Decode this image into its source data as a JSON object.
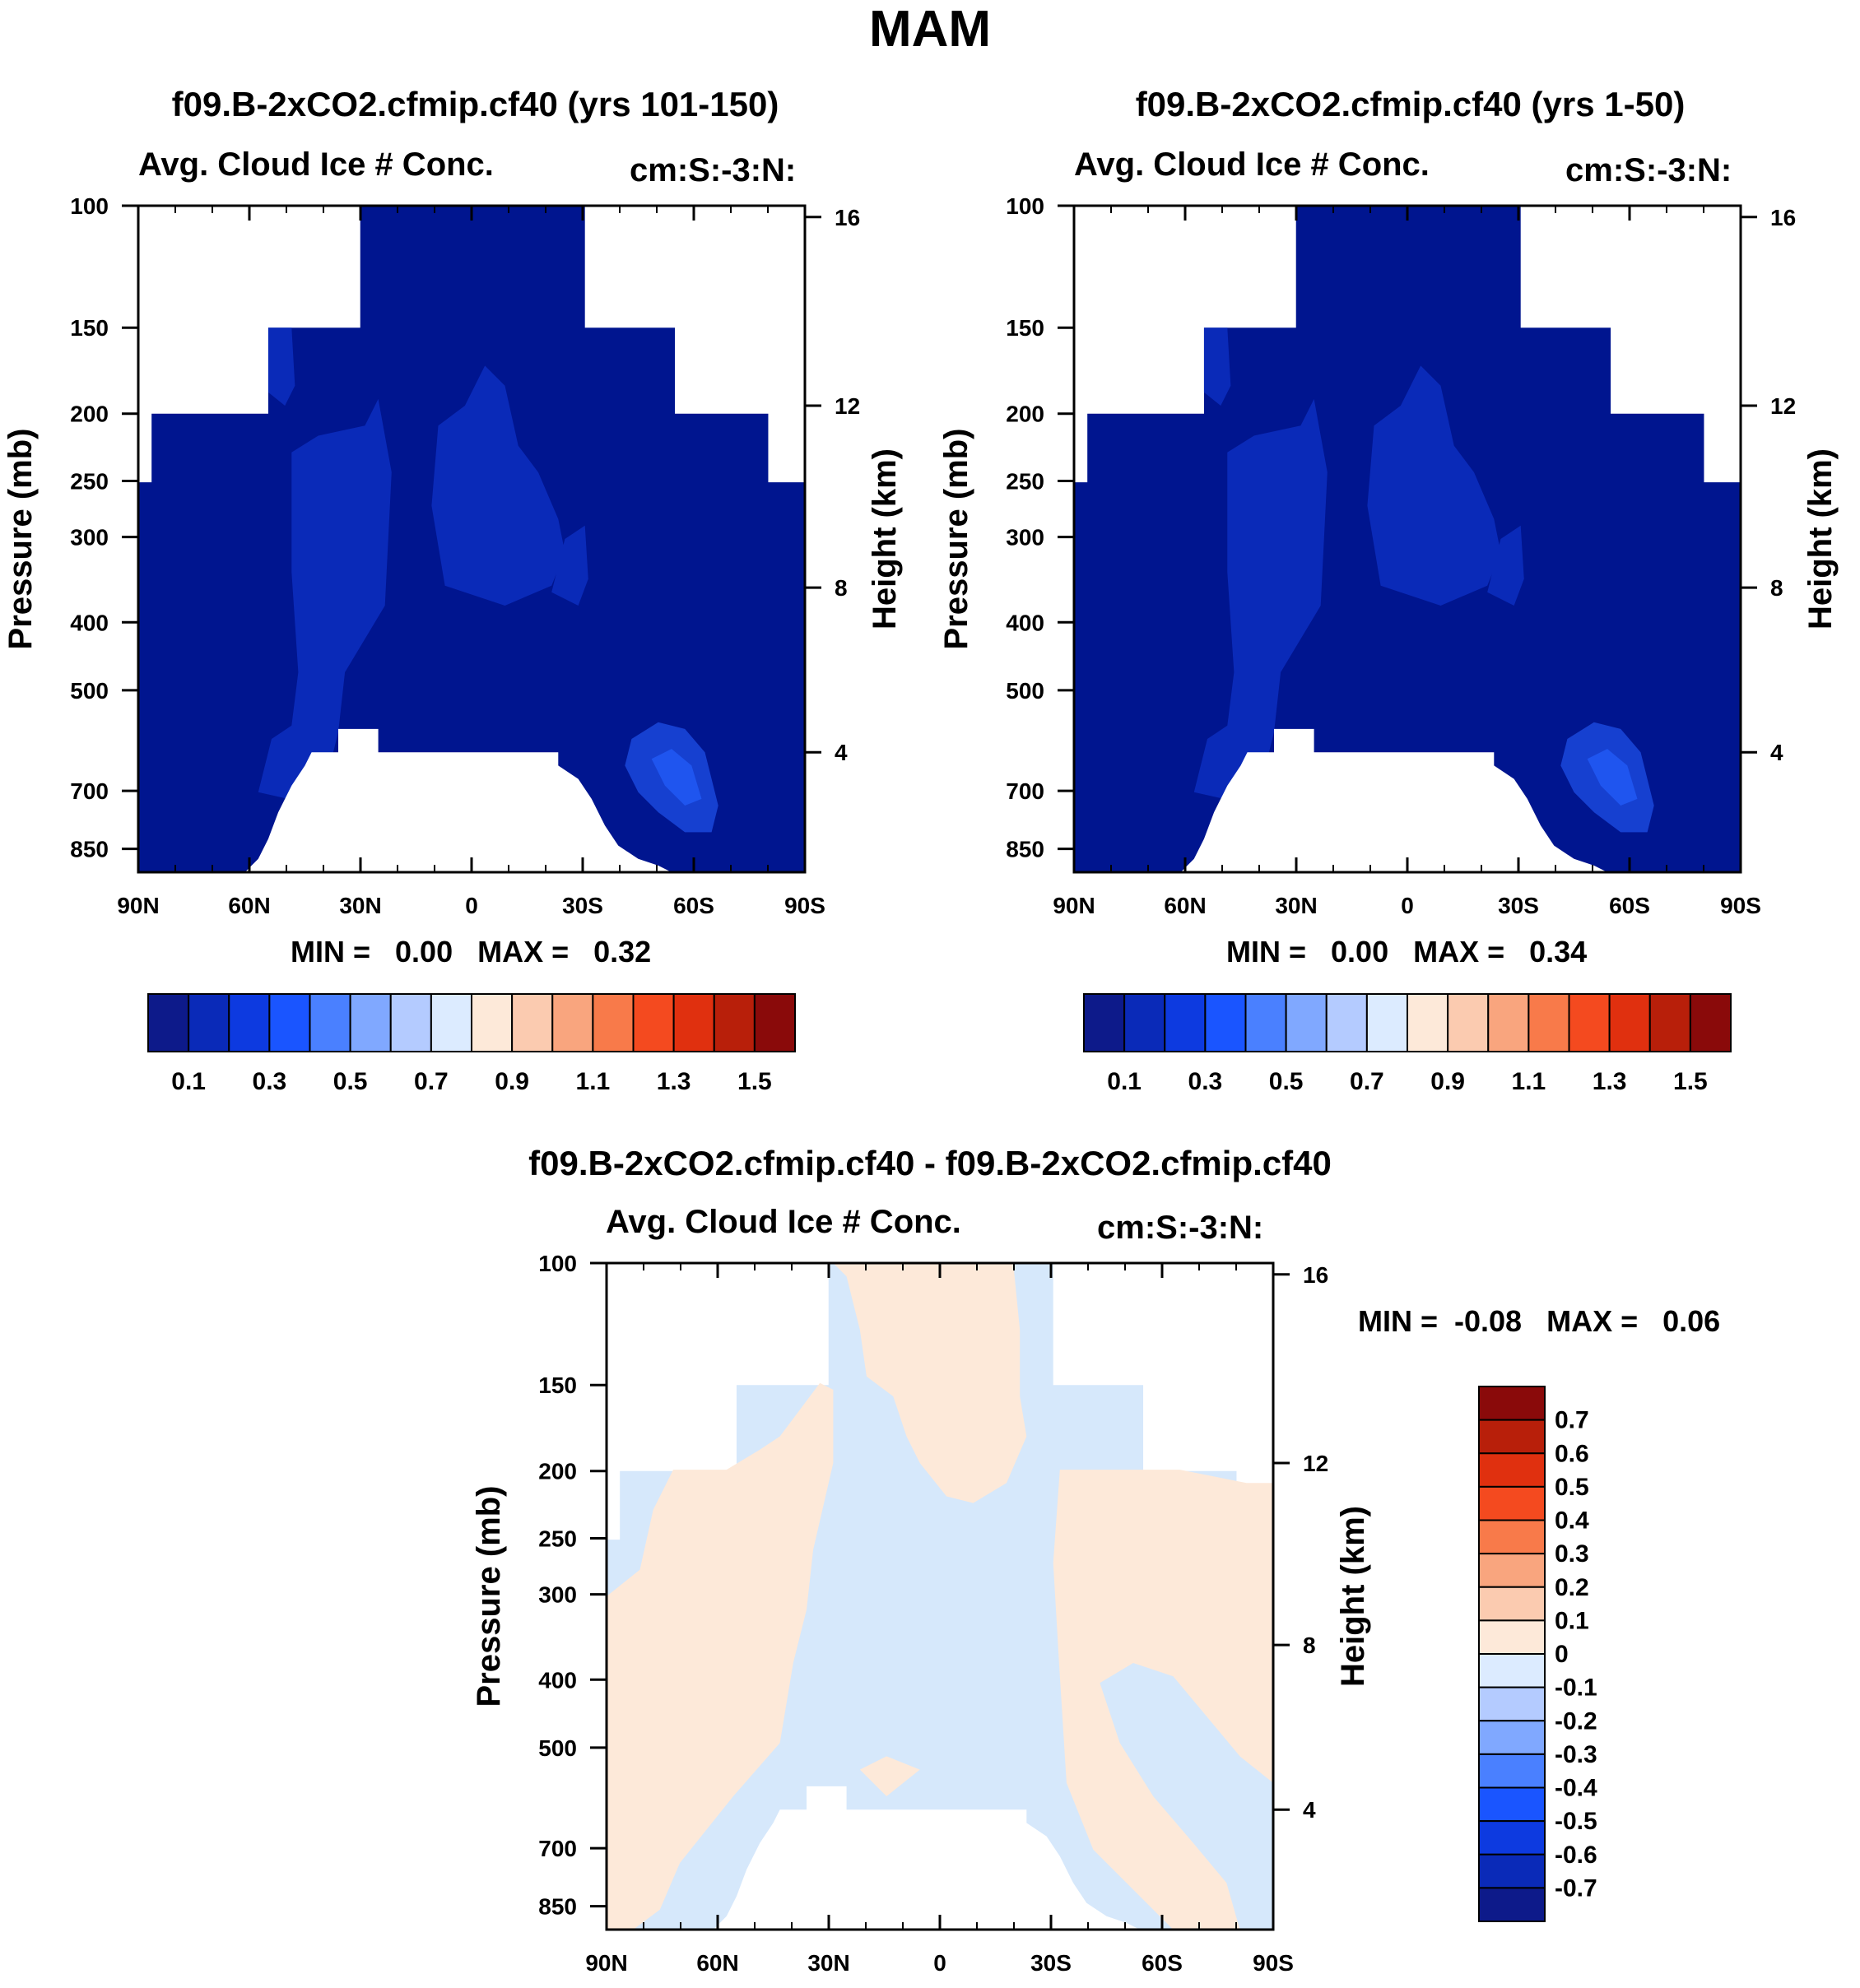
{
  "figure_title": "MAM",
  "chart_data": [
    {
      "type": "heatmap",
      "title": "f09.B-2xCO2.cfmip.cf40 (yrs 101-150)",
      "variable": "Avg. Cloud Ice # Conc.",
      "units": "cm:S:-3:N:",
      "ylabel_left": "Pressure (mb)",
      "ylabel_right": "Height (km)",
      "x_ticks": [
        "90N",
        "60N",
        "30N",
        "0",
        "30S",
        "60S",
        "90S"
      ],
      "xlim": [
        90,
        -90
      ],
      "y_ticks": [
        "100",
        "150",
        "200",
        "250",
        "300",
        "400",
        "500",
        "700",
        "850"
      ],
      "y_right_ticks": [
        "16",
        "12",
        "8",
        "4"
      ],
      "min_max": "MIN =   0.00   MAX =   0.32",
      "min": 0.0,
      "max": 0.32,
      "colorbar_labels": [
        "0.1",
        "0.3",
        "0.5",
        "0.7",
        "0.9",
        "1.1",
        "1.3",
        "1.5"
      ],
      "colorbar_colors": [
        "#0d1a8a",
        "#0a2ab8",
        "#0d3ae0",
        "#1a55ff",
        "#4a80ff",
        "#80a8ff",
        "#b4cbff",
        "#dcebff",
        "#fde9d9",
        "#fbcbb0",
        "#f9a57e",
        "#f87a4a",
        "#f44a1f",
        "#e0300f",
        "#b81f0a",
        "#8a0a0a"
      ]
    },
    {
      "type": "heatmap",
      "title": "f09.B-2xCO2.cfmip.cf40 (yrs 1-50)",
      "variable": "Avg. Cloud Ice # Conc.",
      "units": "cm:S:-3:N:",
      "ylabel_left": "Pressure (mb)",
      "ylabel_right": "Height (km)",
      "x_ticks": [
        "90N",
        "60N",
        "30N",
        "0",
        "30S",
        "60S",
        "90S"
      ],
      "xlim": [
        90,
        -90
      ],
      "y_ticks": [
        "100",
        "150",
        "200",
        "250",
        "300",
        "400",
        "500",
        "700",
        "850"
      ],
      "y_right_ticks": [
        "16",
        "12",
        "8",
        "4"
      ],
      "min_max": "MIN =   0.00   MAX =   0.34",
      "min": 0.0,
      "max": 0.34,
      "colorbar_labels": [
        "0.1",
        "0.3",
        "0.5",
        "0.7",
        "0.9",
        "1.1",
        "1.3",
        "1.5"
      ],
      "colorbar_colors": [
        "#0d1a8a",
        "#0a2ab8",
        "#0d3ae0",
        "#1a55ff",
        "#4a80ff",
        "#80a8ff",
        "#b4cbff",
        "#dcebff",
        "#fde9d9",
        "#fbcbb0",
        "#f9a57e",
        "#f87a4a",
        "#f44a1f",
        "#e0300f",
        "#b81f0a",
        "#8a0a0a"
      ]
    },
    {
      "type": "heatmap",
      "title": "f09.B-2xCO2.cfmip.cf40 - f09.B-2xCO2.cfmip.cf40",
      "variable": "Avg. Cloud Ice # Conc.",
      "units": "cm:S:-3:N:",
      "ylabel_left": "Pressure (mb)",
      "ylabel_right": "Height (km)",
      "x_ticks": [
        "90N",
        "60N",
        "30N",
        "0",
        "30S",
        "60S",
        "90S"
      ],
      "xlim": [
        90,
        -90
      ],
      "y_ticks": [
        "100",
        "150",
        "200",
        "250",
        "300",
        "400",
        "500",
        "700",
        "850"
      ],
      "y_right_ticks": [
        "16",
        "12",
        "8",
        "4"
      ],
      "min_max": "MIN =  -0.08   MAX =   0.06",
      "min": -0.08,
      "max": 0.06,
      "colorbar_labels": [
        "0.7",
        "0.6",
        "0.5",
        "0.4",
        "0.3",
        "0.2",
        "0.1",
        "0",
        "-0.1",
        "-0.2",
        "-0.3",
        "-0.4",
        "-0.5",
        "-0.6",
        "-0.7"
      ],
      "colorbar_colors": [
        "#8a0a0a",
        "#b81f0a",
        "#e0300f",
        "#f44a1f",
        "#f87a4a",
        "#f9a57e",
        "#fbcbb0",
        "#fde9d9",
        "#dcebff",
        "#b4cbff",
        "#80a8ff",
        "#4a80ff",
        "#1a55ff",
        "#0d3ae0",
        "#0a2ab8",
        "#0d1a8a"
      ]
    }
  ],
  "colors": {
    "field_dark_blue": "#00158f",
    "field_mid_blue": "#0a2ab8",
    "field_light_blue": "#1640d0",
    "field_bright_blue": "#1f55ef",
    "diff_pos": "#fde9d9",
    "diff_neg": "#d6e8fb"
  }
}
